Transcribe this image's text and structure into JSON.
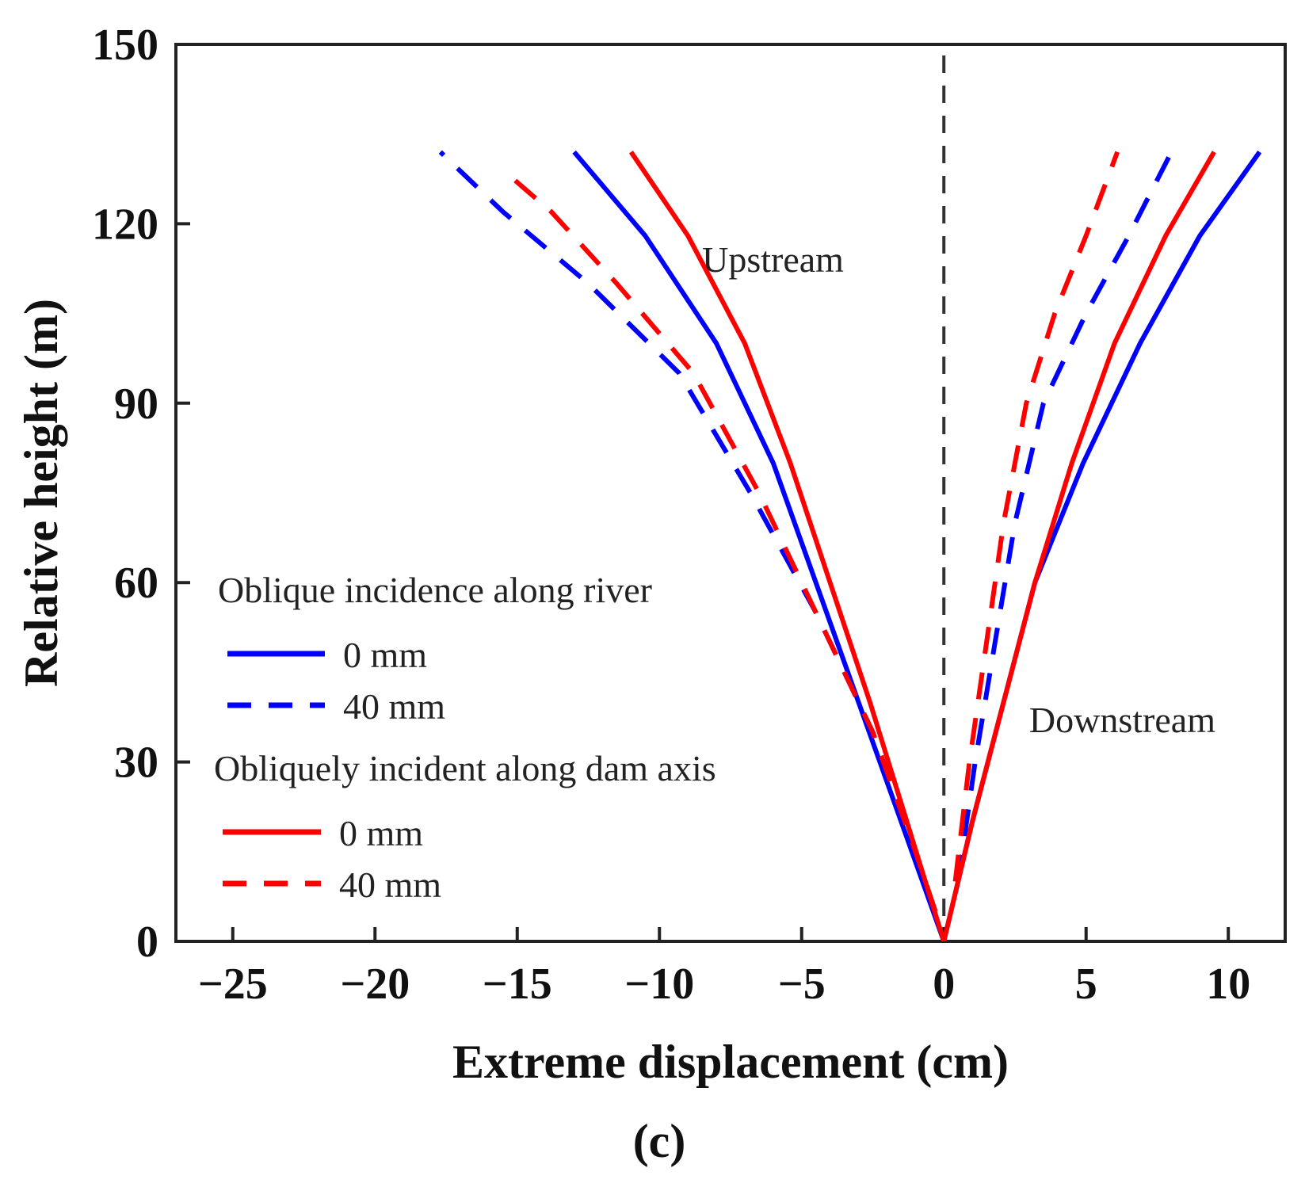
{
  "chart_data": {
    "type": "line",
    "title": "",
    "xlabel": "Extreme displacement (cm)",
    "ylabel": "Relative height (m)",
    "xlim": [
      -27,
      12
    ],
    "ylim": [
      0,
      150
    ],
    "xticks": [
      -25,
      -20,
      -15,
      -10,
      -5,
      0,
      5,
      10
    ],
    "xtick_labels": [
      "−25",
      "−20",
      "−15",
      "−10",
      "−5",
      "0",
      "5",
      "10"
    ],
    "yticks": [
      0,
      30,
      60,
      90,
      120,
      150
    ],
    "ytick_labels": [
      "0",
      "30",
      "60",
      "90",
      "120",
      "150"
    ],
    "grid": false,
    "caption": "(c)",
    "annotations": [
      {
        "text": "Upstream",
        "x": -8.5,
        "y": 112
      },
      {
        "text": "Downstream",
        "x": 3,
        "y": 35
      }
    ],
    "reference_line": {
      "x": 0,
      "style": "dashed",
      "color": "#333333"
    },
    "legend": {
      "position": "center-left",
      "groups": [
        {
          "title": "Oblique incidence along river",
          "entries": [
            {
              "label": "0 mm",
              "color": "#0000ff",
              "dash": "solid"
            },
            {
              "label": "40 mm",
              "color": "#0000ff",
              "dash": "dashed"
            }
          ]
        },
        {
          "title": "Obliquely incident along dam axis",
          "entries": [
            {
              "label": "0 mm",
              "color": "#ff0000",
              "dash": "solid"
            },
            {
              "label": "40 mm",
              "color": "#ff0000",
              "dash": "dashed"
            }
          ]
        }
      ]
    },
    "series": [
      {
        "name": "Oblique incidence along river, 0 mm, upstream",
        "color": "#0000ff",
        "dash": "solid",
        "points": [
          [
            0,
            0
          ],
          [
            -1.5,
            20
          ],
          [
            -3.0,
            40
          ],
          [
            -4.5,
            60
          ],
          [
            -6.0,
            80
          ],
          [
            -8.0,
            100
          ],
          [
            -10.5,
            118
          ],
          [
            -13.0,
            132
          ]
        ]
      },
      {
        "name": "Oblique incidence along river, 0 mm, downstream",
        "color": "#0000ff",
        "dash": "solid",
        "points": [
          [
            0,
            0
          ],
          [
            1.0,
            20
          ],
          [
            2.1,
            40
          ],
          [
            3.2,
            60
          ],
          [
            4.9,
            80
          ],
          [
            6.9,
            100
          ],
          [
            9.0,
            118
          ],
          [
            11.1,
            132
          ]
        ]
      },
      {
        "name": "Oblique incidence along river, 40 mm, upstream",
        "color": "#0000ff",
        "dash": "dashed",
        "points": [
          [
            -0.3,
            5
          ],
          [
            -1.0,
            15
          ],
          [
            -2.5,
            35
          ],
          [
            -4.5,
            55
          ],
          [
            -6.8,
            75
          ],
          [
            -9.3,
            95
          ],
          [
            -12.5,
            110
          ],
          [
            -15.5,
            122
          ],
          [
            -17.7,
            132
          ]
        ]
      },
      {
        "name": "Oblique incidence along river, 40 mm, downstream",
        "color": "#0000ff",
        "dash": "dashed",
        "points": [
          [
            0.5,
            10
          ],
          [
            1.1,
            30
          ],
          [
            1.8,
            50
          ],
          [
            2.5,
            70
          ],
          [
            3.5,
            90
          ],
          [
            5.0,
            105
          ],
          [
            6.5,
            118
          ],
          [
            8.0,
            132
          ]
        ]
      },
      {
        "name": "Obliquely incident along dam axis, 0 mm, upstream",
        "color": "#ff0000",
        "dash": "solid",
        "points": [
          [
            0,
            0
          ],
          [
            -1.3,
            20
          ],
          [
            -2.6,
            40
          ],
          [
            -4.0,
            60
          ],
          [
            -5.4,
            80
          ],
          [
            -7.0,
            100
          ],
          [
            -9.0,
            118
          ],
          [
            -11.0,
            132
          ]
        ]
      },
      {
        "name": "Obliquely incident along dam axis, 0 mm, downstream",
        "color": "#ff0000",
        "dash": "solid",
        "points": [
          [
            0,
            0
          ],
          [
            1.0,
            20
          ],
          [
            2.1,
            40
          ],
          [
            3.2,
            60
          ],
          [
            4.5,
            80
          ],
          [
            6.0,
            100
          ],
          [
            7.8,
            118
          ],
          [
            9.5,
            132
          ]
        ]
      },
      {
        "name": "Obliquely incident along dam axis, 40 mm, upstream",
        "color": "#ff0000",
        "dash": "dashed",
        "points": [
          [
            -0.3,
            5
          ],
          [
            -1.0,
            15
          ],
          [
            -2.5,
            35
          ],
          [
            -4.5,
            55
          ],
          [
            -6.5,
            75
          ],
          [
            -8.8,
            95
          ],
          [
            -11.5,
            110
          ],
          [
            -13.8,
            122
          ],
          [
            -15.5,
            129
          ]
        ]
      },
      {
        "name": "Obliquely incident along dam axis, 40 mm, downstream",
        "color": "#ff0000",
        "dash": "dashed",
        "points": [
          [
            0.4,
            10
          ],
          [
            0.9,
            30
          ],
          [
            1.5,
            50
          ],
          [
            2.1,
            70
          ],
          [
            2.9,
            90
          ],
          [
            3.9,
            105
          ],
          [
            5.0,
            118
          ],
          [
            6.1,
            132
          ]
        ]
      }
    ]
  }
}
